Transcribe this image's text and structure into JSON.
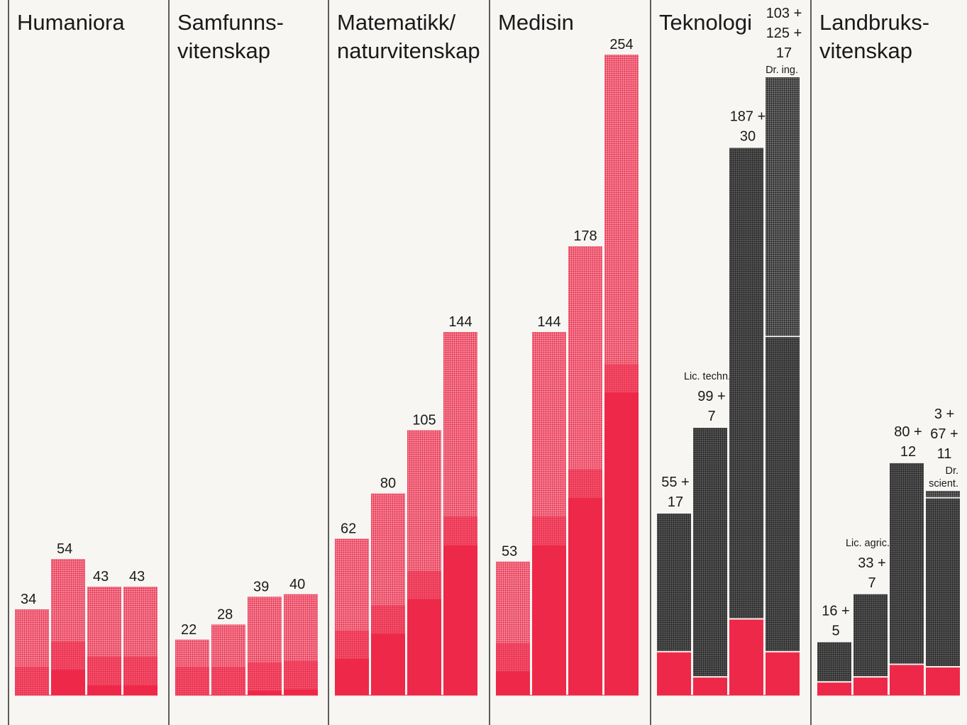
{
  "chart_data": [
    {
      "type": "bar",
      "title": "Humaniora",
      "series": [
        {
          "values": [
            34,
            54,
            43,
            43
          ]
        }
      ],
      "value_labels": [
        "34",
        "54",
        "43",
        "43"
      ]
    },
    {
      "type": "bar",
      "title": "Samfunns-\nvitenskap",
      "series": [
        {
          "values": [
            22,
            28,
            39,
            40
          ]
        }
      ],
      "value_labels": [
        "22",
        "28",
        "39",
        "40"
      ]
    },
    {
      "type": "bar",
      "title": "Matematikk/\nnaturvitenskap",
      "series": [
        {
          "values": [
            62,
            80,
            105,
            144
          ]
        }
      ],
      "value_labels": [
        "62",
        "80",
        "105",
        "144"
      ]
    },
    {
      "type": "bar",
      "title": "Medisin",
      "series": [
        {
          "values": [
            53,
            144,
            178,
            254
          ]
        }
      ],
      "value_labels": [
        "53",
        "144",
        "178",
        "254"
      ]
    },
    {
      "type": "bar",
      "stacked": true,
      "title": "Teknologi",
      "series": [
        {
          "values": [
            17,
            7,
            30,
            17
          ]
        },
        {
          "values": [
            55,
            99,
            187,
            125
          ]
        },
        {
          "values": [
            0,
            0,
            0,
            103
          ]
        }
      ],
      "value_labels": [
        "55 +\n17",
        "99 +\n7",
        "187 +\n30",
        "103 +\n125 +\n17"
      ],
      "annotations": [
        "",
        "Lic. techn.",
        "",
        "Dr. ing."
      ]
    },
    {
      "type": "bar",
      "stacked": true,
      "title": "Landbruks-\nvitenskap",
      "series": [
        {
          "values": [
            5,
            7,
            12,
            11
          ]
        },
        {
          "values": [
            16,
            33,
            80,
            67
          ]
        },
        {
          "values": [
            0,
            0,
            0,
            3
          ]
        }
      ],
      "value_labels": [
        "16 +\n5",
        "33 +\n7",
        "80 +\n12",
        "3 +\n67 +\n11"
      ],
      "annotations": [
        "",
        "Lic. agric.",
        "",
        "Dr.\nscient."
      ]
    }
  ],
  "colors": {
    "background": "#f7f6f3",
    "bar_red": "#ee2848",
    "bar_dark": "#2b2b2b",
    "divider": "#1a1a1a",
    "text": "#1a1a1a"
  }
}
